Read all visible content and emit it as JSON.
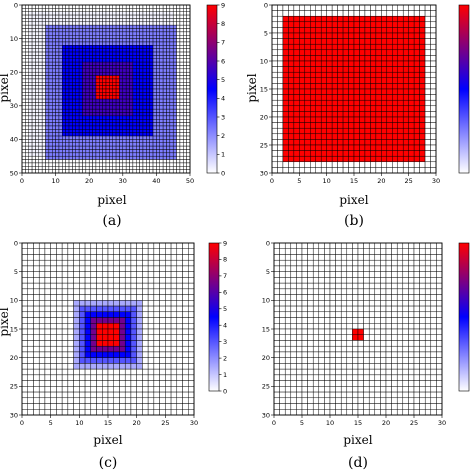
{
  "colormap": {
    "name": "white-blue-red",
    "stops": [
      "#ffffff",
      "#0000ff",
      "#ff0000"
    ]
  },
  "chart_data": [
    {
      "type": "heatmap",
      "caption": "(a)",
      "xlabel": "pixel",
      "ylabel": "pixel",
      "size": 50,
      "xticks": [
        0,
        10,
        20,
        30,
        40,
        50
      ],
      "yticks": [
        0,
        10,
        20,
        30,
        40,
        50
      ],
      "cbar_ticks": [
        0,
        1,
        2,
        3,
        4,
        5,
        6,
        7,
        8,
        9
      ],
      "vmin": 0,
      "vmax": 9,
      "regions": [
        {
          "x0": 2,
          "x1": 45,
          "y0": 2,
          "y1": 45,
          "value": 0.2
        },
        {
          "x0": 7,
          "x1": 46,
          "y0": 6,
          "y1": 46,
          "value": 2.3
        },
        {
          "x0": 12,
          "x1": 39,
          "y0": 12,
          "y1": 39,
          "value": 4.5
        },
        {
          "x0": 18,
          "x1": 33,
          "y0": 17,
          "y1": 33,
          "value": 5.6
        },
        {
          "x0": 22,
          "x1": 29,
          "y0": 21,
          "y1": 28,
          "value": 9
        }
      ]
    },
    {
      "type": "heatmap",
      "caption": "(b)",
      "xlabel": "pixel",
      "ylabel": "pixel",
      "size": 30,
      "xticks": [
        0,
        5,
        10,
        15,
        20,
        25,
        30
      ],
      "yticks": [
        0,
        5,
        10,
        15,
        20,
        25,
        30
      ],
      "cbar_ticks": [],
      "vmin": 0,
      "vmax": 9,
      "regions": [
        {
          "x0": 2,
          "x1": 28,
          "y0": 2,
          "y1": 28,
          "value": 9
        }
      ]
    },
    {
      "type": "heatmap",
      "caption": "(c)",
      "xlabel": "pixel",
      "ylabel": "pixel",
      "size": 30,
      "xticks": [
        0,
        5,
        10,
        15,
        20,
        25,
        30
      ],
      "yticks": [
        0,
        5,
        10,
        15,
        20,
        25,
        30
      ],
      "cbar_ticks": [
        0,
        1,
        2,
        3,
        4,
        5,
        6,
        7,
        8,
        9
      ],
      "vmin": 0,
      "vmax": 9,
      "regions": [
        {
          "x0": 9,
          "x1": 21,
          "y0": 10,
          "y1": 22,
          "value": 1.5
        },
        {
          "x0": 10,
          "x1": 20,
          "y0": 11,
          "y1": 21,
          "value": 3
        },
        {
          "x0": 11,
          "x1": 19,
          "y0": 12,
          "y1": 20,
          "value": 4.5
        },
        {
          "x0": 12,
          "x1": 18,
          "y0": 13,
          "y1": 19,
          "value": 6.5
        },
        {
          "x0": 13,
          "x1": 17,
          "y0": 14,
          "y1": 18,
          "value": 9
        }
      ]
    },
    {
      "type": "heatmap",
      "caption": "(d)",
      "xlabel": "pixel",
      "ylabel": "",
      "size": 30,
      "xticks": [
        0,
        5,
        10,
        15,
        20,
        25,
        30
      ],
      "yticks": [
        0,
        5,
        10,
        15,
        20,
        25,
        30
      ],
      "cbar_ticks": [],
      "vmin": 0,
      "vmax": 9,
      "regions": [
        {
          "x0": 14,
          "x1": 16,
          "y0": 15,
          "y1": 17,
          "value": 9
        }
      ]
    }
  ]
}
